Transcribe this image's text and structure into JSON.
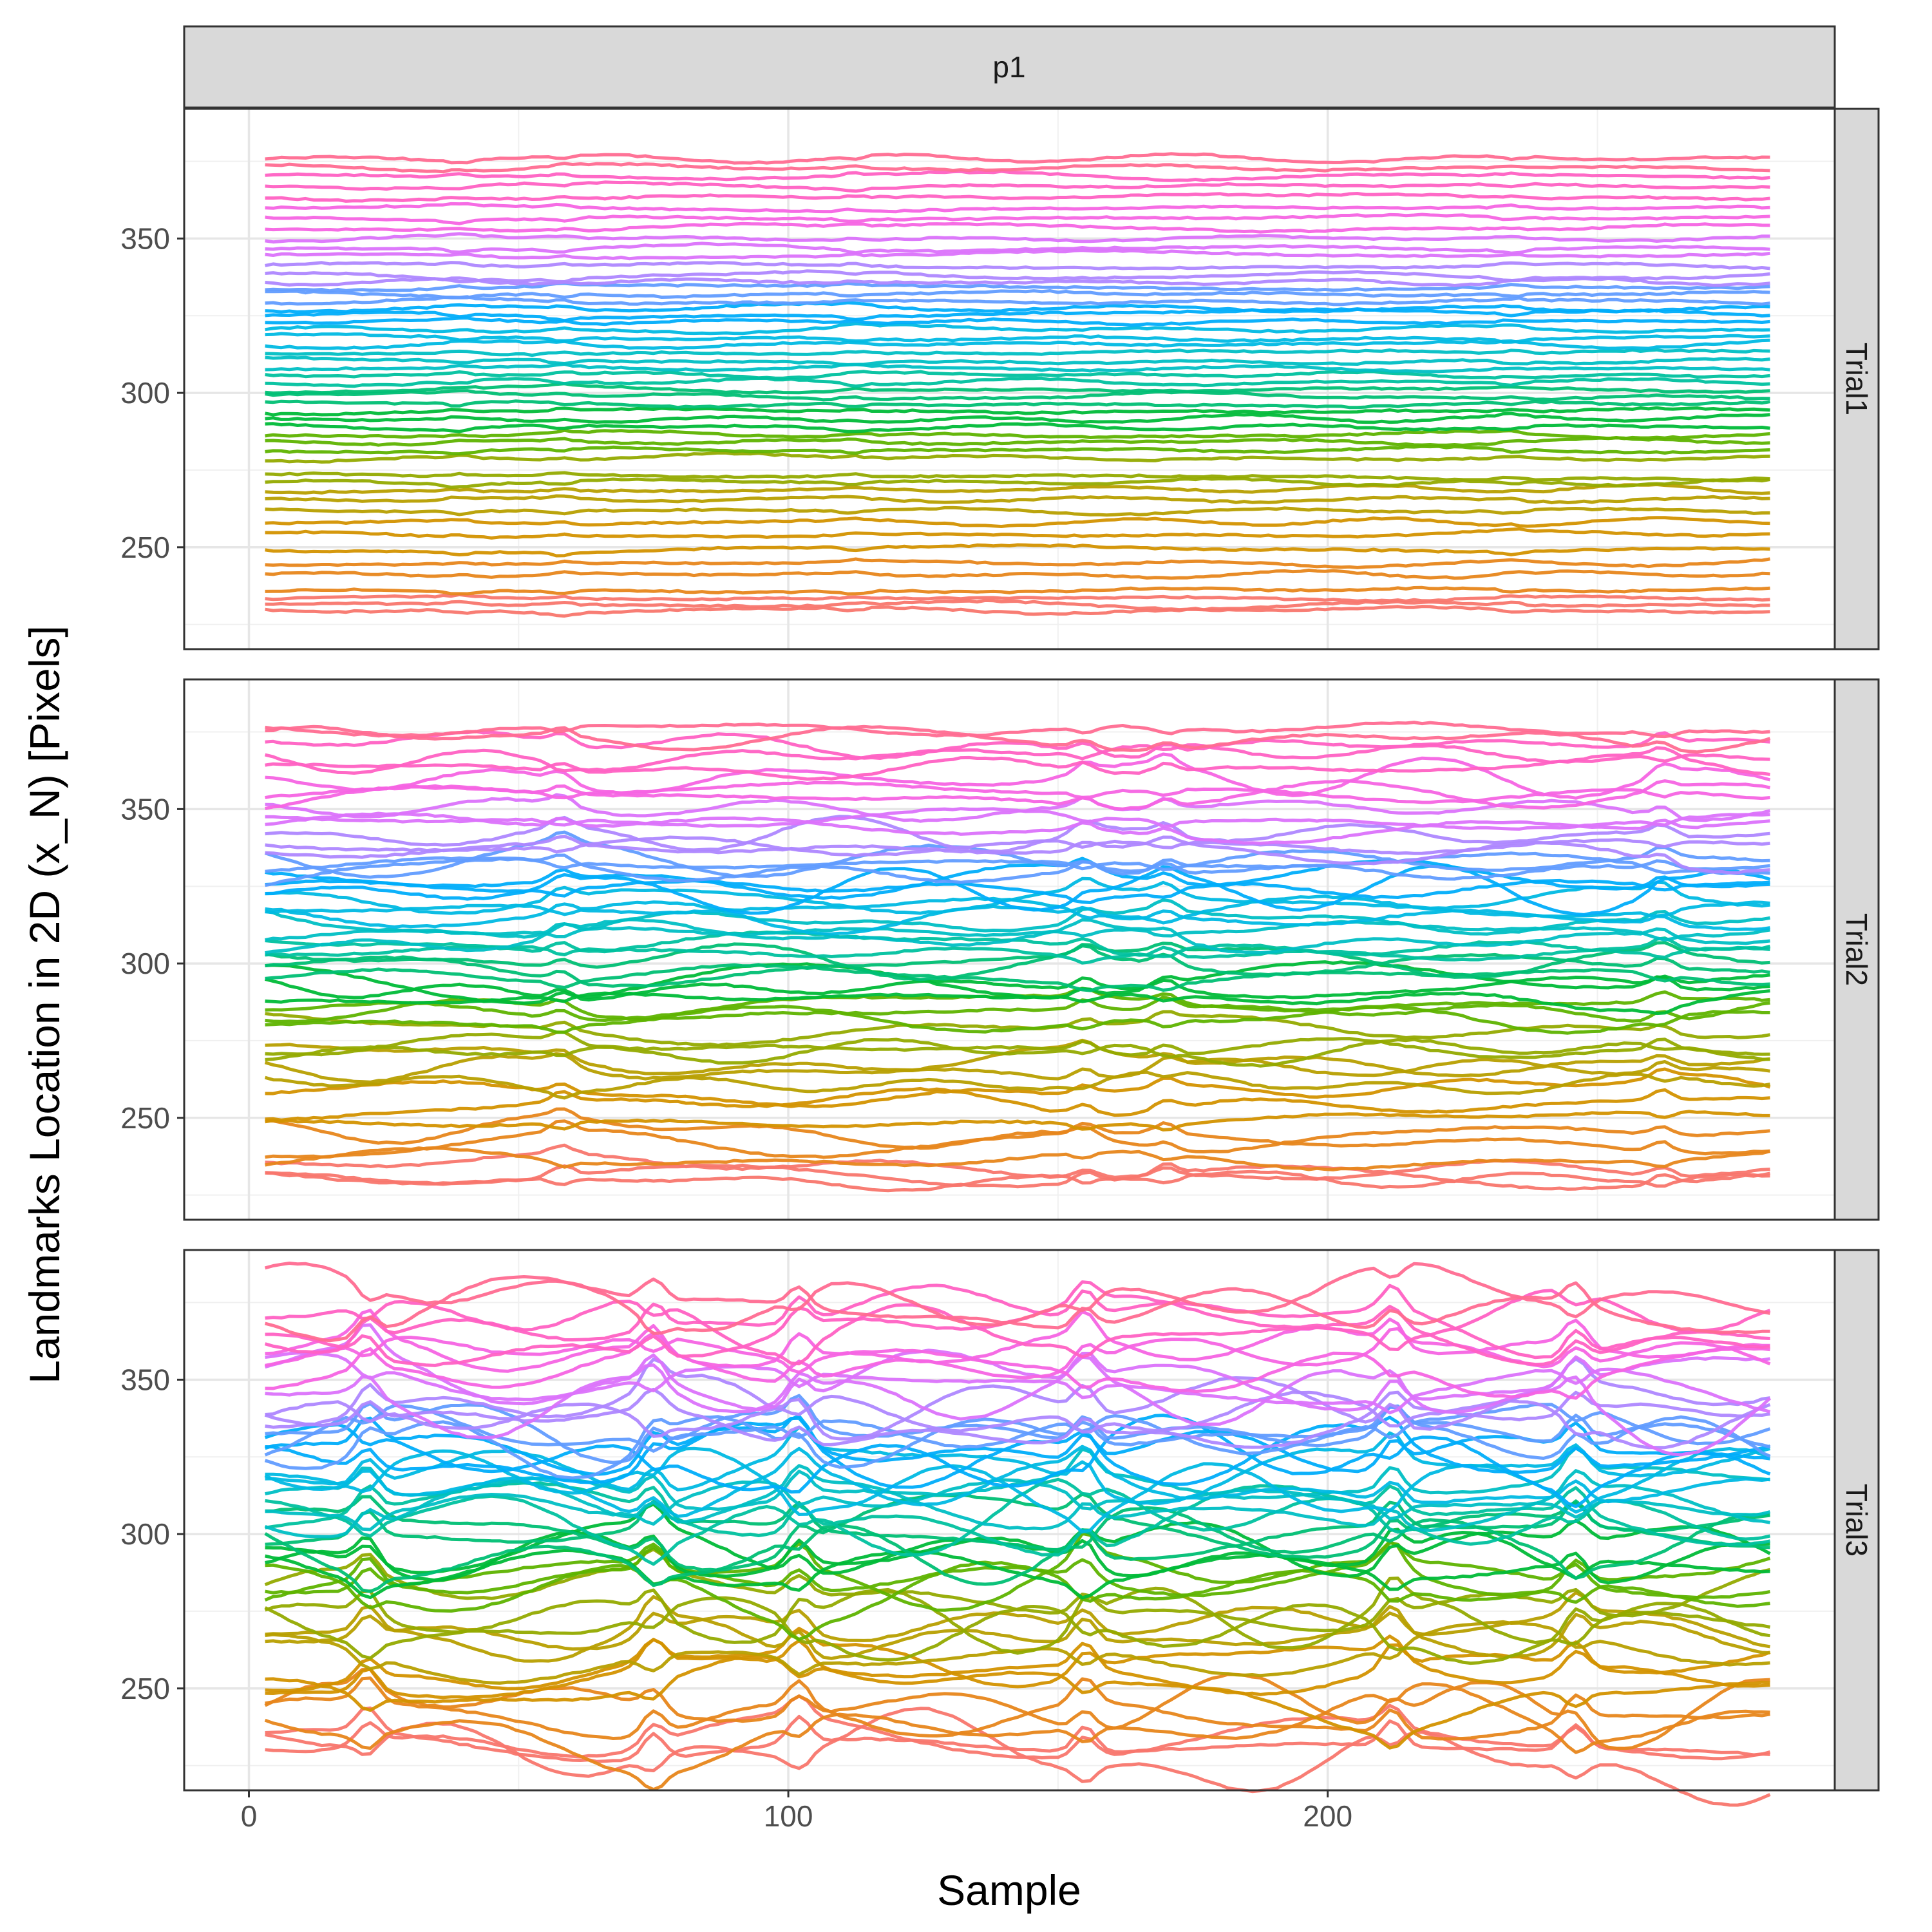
{
  "chart_data": {
    "type": "line",
    "facet_column": "p1",
    "facet_rows": [
      "Trial1",
      "Trial2",
      "Trial3"
    ],
    "xlabel": "Sample",
    "ylabel": "Landmarks Location in 2D (x_N) [Pixels]",
    "x_ticks": [
      0,
      100,
      200
    ],
    "y_ticks": [
      250,
      300,
      350
    ],
    "xlim": [
      -12,
      294
    ],
    "ylim": [
      217,
      392
    ],
    "x_range": [
      3,
      283
    ],
    "grid": true,
    "legend": "none",
    "theme": "ggplot2 theme_bw",
    "series_count": 68,
    "palette": [
      "#F8766D",
      "#E7861B",
      "#D39200",
      "#B79F00",
      "#93AA00",
      "#5EB300",
      "#00BA38",
      "#00BF74",
      "#00C19F",
      "#00BFC4",
      "#00B9E3",
      "#00ADFA",
      "#619CFF",
      "#AE87FF",
      "#DB72FB",
      "#F564E3",
      "#FF61C3",
      "#FF6C91"
    ],
    "panels": [
      {
        "name": "Trial1",
        "baselines": [
          229.5,
          231.5,
          233.5,
          236.0,
          241.0,
          245.0,
          249.5,
          254.0,
          258.0,
          262.0,
          265.5,
          268.5,
          271.0,
          273.0,
          279.0,
          281.5,
          284.0,
          286.5,
          289.0,
          291.5,
          294.0,
          296.5,
          299.0,
          301.0,
          303.5,
          306.0,
          308.0,
          310.5,
          313.0,
          315.5,
          318.0,
          320.5,
          323.0,
          325.5,
          327.5,
          329.5,
          332.0,
          334.0,
          336.0,
          338.0,
          341.0,
          344.5,
          347.0,
          350.0,
          353.5,
          356.5,
          360.0,
          363.5,
          367.0,
          370.0,
          373.0,
          376.0
        ],
        "amplitude": 1.2,
        "spikes": [
          39,
          58,
          112,
          234
        ]
      },
      {
        "name": "Trial2",
        "baselines": [
          229.5,
          231.5,
          233.5,
          236.0,
          241.0,
          245.0,
          249.5,
          254.0,
          258.0,
          262.0,
          265.5,
          268.5,
          271.0,
          273.0,
          279.0,
          281.5,
          284.0,
          286.5,
          289.0,
          291.5,
          294.0,
          296.5,
          299.0,
          301.0,
          303.5,
          306.0,
          308.0,
          310.5,
          313.0,
          315.5,
          318.0,
          320.5,
          323.0,
          325.5,
          327.5,
          329.5,
          332.0,
          334.0,
          336.0,
          338.0,
          341.0,
          344.5,
          347.0,
          350.0,
          353.5,
          356.5,
          360.0,
          363.5,
          367.0,
          370.0,
          373.0,
          376.0
        ],
        "amplitude": 5.0,
        "spikes": [
          58,
          155,
          170,
          262
        ]
      },
      {
        "name": "Trial3",
        "baselines": [
          229.5,
          231.5,
          233.5,
          236.0,
          241.0,
          245.0,
          249.5,
          254.0,
          258.0,
          262.0,
          265.5,
          268.5,
          271.0,
          273.0,
          279.0,
          281.5,
          284.0,
          286.5,
          289.0,
          291.5,
          294.0,
          296.5,
          299.0,
          301.0,
          303.5,
          306.0,
          308.0,
          310.5,
          313.0,
          315.5,
          318.0,
          320.5,
          323.0,
          325.5,
          327.5,
          329.5,
          332.0,
          334.0,
          336.0,
          338.0,
          341.0,
          344.5,
          347.0,
          350.0,
          353.5,
          356.5,
          360.0,
          363.5,
          367.0,
          370.0,
          373.0,
          376.0
        ],
        "amplitude": 11.0,
        "spikes": [
          22,
          75,
          102,
          155,
          212,
          246
        ]
      }
    ]
  }
}
